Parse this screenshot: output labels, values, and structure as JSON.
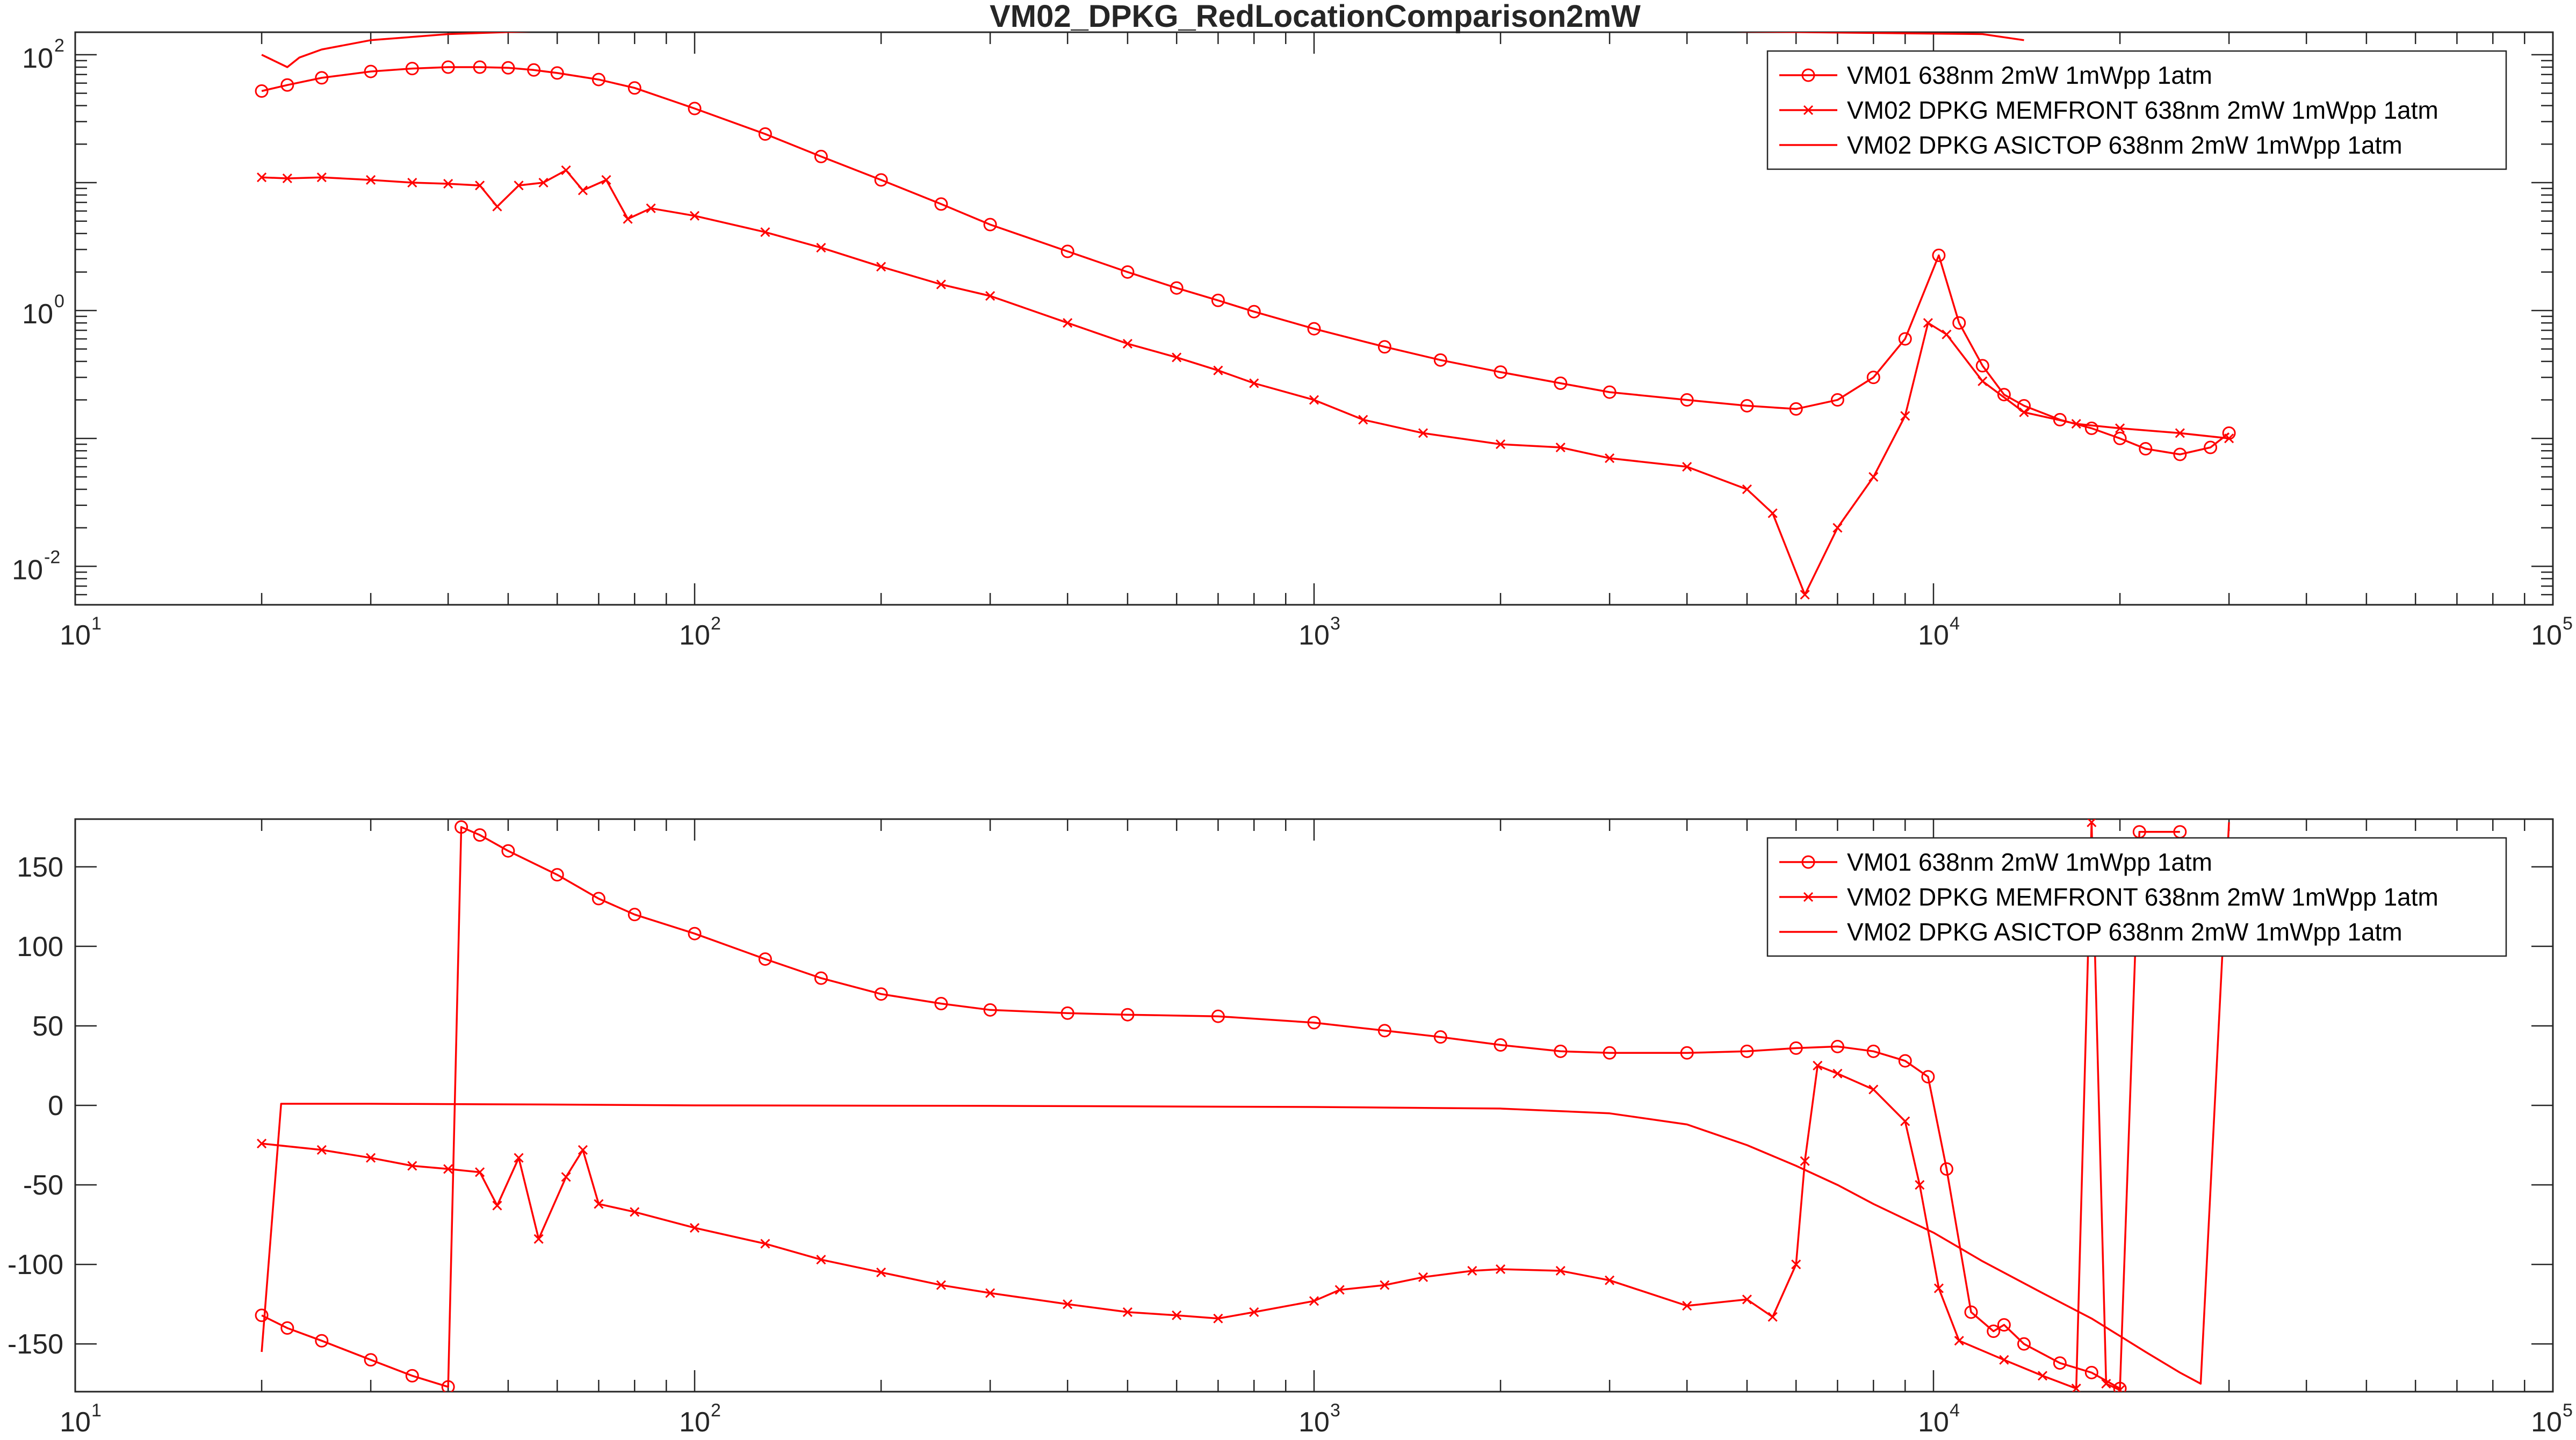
{
  "figure_title": "VM02_DPKG_RedLocationComparison2mW",
  "colors": {
    "series": "#ff0000",
    "axes": "#262626",
    "background": "#ffffff"
  },
  "chart_data": [
    {
      "type": "line",
      "title": "VM02_DPKG_RedLocationComparison2mW",
      "xlabel": "",
      "ylabel": "",
      "xscale": "log",
      "yscale": "log",
      "xlim": [
        10,
        100000
      ],
      "ylim": [
        0.005,
        150
      ],
      "grid": false,
      "legend": "top-right",
      "x_ticks": [
        {
          "base": "10",
          "exp": "1"
        },
        {
          "base": "10",
          "exp": "2"
        },
        {
          "base": "10",
          "exp": "3"
        },
        {
          "base": "10",
          "exp": "4"
        },
        {
          "base": "10",
          "exp": "5"
        }
      ],
      "y_ticks": [
        {
          "base": "10",
          "exp": "-2"
        },
        {
          "base": "10",
          "exp": "0"
        },
        {
          "base": "10",
          "exp": "2"
        }
      ],
      "series": [
        {
          "name": "VM01 638nm 2mW 1mWpp 1atm",
          "marker": "circle",
          "points": [
            [
              20,
              52
            ],
            [
              22,
              58
            ],
            [
              25,
              66
            ],
            [
              30,
              74
            ],
            [
              35,
              78
            ],
            [
              40,
              80
            ],
            [
              45,
              80
            ],
            [
              50,
              79
            ],
            [
              55,
              76
            ],
            [
              60,
              72
            ],
            [
              70,
              64
            ],
            [
              80,
              55
            ],
            [
              100,
              38
            ],
            [
              130,
              24
            ],
            [
              160,
              16
            ],
            [
              200,
              10.5
            ],
            [
              250,
              6.8
            ],
            [
              300,
              4.7
            ],
            [
              400,
              2.9
            ],
            [
              500,
              2.0
            ],
            [
              600,
              1.5
            ],
            [
              700,
              1.2
            ],
            [
              800,
              0.98
            ],
            [
              1000,
              0.72
            ],
            [
              1300,
              0.52
            ],
            [
              1600,
              0.41
            ],
            [
              2000,
              0.33
            ],
            [
              2500,
              0.27
            ],
            [
              3000,
              0.23
            ],
            [
              4000,
              0.2
            ],
            [
              5000,
              0.18
            ],
            [
              6000,
              0.17
            ],
            [
              7000,
              0.2
            ],
            [
              8000,
              0.3
            ],
            [
              9000,
              0.6
            ],
            [
              10200,
              2.7
            ],
            [
              11000,
              0.8
            ],
            [
              12000,
              0.37
            ],
            [
              13000,
              0.22
            ],
            [
              14000,
              0.18
            ],
            [
              16000,
              0.14
            ],
            [
              18000,
              0.12
            ],
            [
              20000,
              0.1
            ],
            [
              22000,
              0.083
            ],
            [
              25000,
              0.075
            ],
            [
              28000,
              0.085
            ],
            [
              30000,
              0.11
            ]
          ]
        },
        {
          "name": "VM02 DPKG MEMFRONT 638nm 2mW 1mWpp 1atm",
          "marker": "x",
          "points": [
            [
              20,
              11
            ],
            [
              22,
              10.8
            ],
            [
              25,
              11
            ],
            [
              30,
              10.5
            ],
            [
              35,
              10
            ],
            [
              40,
              9.8
            ],
            [
              45,
              9.5
            ],
            [
              48,
              6.5
            ],
            [
              52,
              9.5
            ],
            [
              57,
              10
            ],
            [
              62,
              12.5
            ],
            [
              66,
              8.7
            ],
            [
              72,
              10.5
            ],
            [
              78,
              5.2
            ],
            [
              85,
              6.3
            ],
            [
              100,
              5.5
            ],
            [
              130,
              4.1
            ],
            [
              160,
              3.1
            ],
            [
              200,
              2.2
            ],
            [
              250,
              1.6
            ],
            [
              300,
              1.3
            ],
            [
              400,
              0.8
            ],
            [
              500,
              0.55
            ],
            [
              600,
              0.43
            ],
            [
              700,
              0.34
            ],
            [
              800,
              0.27
            ],
            [
              1000,
              0.2
            ],
            [
              1200,
              0.14
            ],
            [
              1500,
              0.11
            ],
            [
              2000,
              0.09
            ],
            [
              2500,
              0.085
            ],
            [
              3000,
              0.07
            ],
            [
              4000,
              0.06
            ],
            [
              5000,
              0.04
            ],
            [
              5500,
              0.026
            ],
            [
              6200,
              0.006
            ],
            [
              7000,
              0.02
            ],
            [
              8000,
              0.05
            ],
            [
              9000,
              0.15
            ],
            [
              9800,
              0.8
            ],
            [
              10500,
              0.65
            ],
            [
              12000,
              0.28
            ],
            [
              14000,
              0.16
            ],
            [
              17000,
              0.13
            ],
            [
              20000,
              0.12
            ],
            [
              25000,
              0.11
            ],
            [
              30000,
              0.1
            ]
          ]
        },
        {
          "name": "VM02 DPKG ASICTOP 638nm 2mW 1mWpp 1atm",
          "marker": "none",
          "points": [
            [
              20,
              100
            ],
            [
              22,
              80
            ],
            [
              23,
              95
            ],
            [
              25,
              110
            ],
            [
              30,
              130
            ],
            [
              40,
              145
            ],
            [
              60,
              155
            ],
            [
              100,
              158
            ],
            [
              300,
              160
            ],
            [
              1000,
              160
            ],
            [
              3000,
              158
            ],
            [
              5000,
              152
            ],
            [
              8000,
              148
            ],
            [
              12000,
              145
            ],
            [
              14000,
              130
            ]
          ]
        }
      ]
    },
    {
      "type": "line",
      "title": "",
      "xlabel": "",
      "ylabel": "",
      "xscale": "log",
      "yscale": "linear",
      "xlim": [
        10,
        100000
      ],
      "ylim": [
        -180,
        180
      ],
      "grid": false,
      "legend": "top-right",
      "x_ticks": [
        {
          "base": "10",
          "exp": "1"
        },
        {
          "base": "10",
          "exp": "2"
        },
        {
          "base": "10",
          "exp": "3"
        },
        {
          "base": "10",
          "exp": "4"
        },
        {
          "base": "10",
          "exp": "5"
        }
      ],
      "y_ticks": [
        "150",
        "100",
        "50",
        "0",
        "-50",
        "-100",
        "-150"
      ],
      "series": [
        {
          "name": "VM01 638nm 2mW 1mWpp 1atm",
          "marker": "circle",
          "points": [
            [
              20,
              -132
            ],
            [
              22,
              -140
            ],
            [
              25,
              -148
            ],
            [
              30,
              -160
            ],
            [
              35,
              -170
            ],
            [
              40,
              -177
            ],
            [
              42,
              175
            ],
            [
              45,
              170
            ],
            [
              50,
              160
            ],
            [
              60,
              145
            ],
            [
              70,
              130
            ],
            [
              80,
              120
            ],
            [
              100,
              108
            ],
            [
              130,
              92
            ],
            [
              160,
              80
            ],
            [
              200,
              70
            ],
            [
              250,
              64
            ],
            [
              300,
              60
            ],
            [
              400,
              58
            ],
            [
              500,
              57
            ],
            [
              700,
              56
            ],
            [
              1000,
              52
            ],
            [
              1300,
              47
            ],
            [
              1600,
              43
            ],
            [
              2000,
              38
            ],
            [
              2500,
              34
            ],
            [
              3000,
              33
            ],
            [
              4000,
              33
            ],
            [
              5000,
              34
            ],
            [
              6000,
              36
            ],
            [
              7000,
              37
            ],
            [
              8000,
              34
            ],
            [
              9000,
              28
            ],
            [
              9800,
              18
            ],
            [
              10500,
              -40
            ],
            [
              11500,
              -130
            ],
            [
              12500,
              -142
            ],
            [
              13000,
              -138
            ],
            [
              14000,
              -150
            ],
            [
              16000,
              -162
            ],
            [
              18000,
              -168
            ],
            [
              20000,
              -178
            ],
            [
              21500,
              172
            ],
            [
              25000,
              172
            ]
          ]
        },
        {
          "name": "VM02 DPKG MEMFRONT 638nm 2mW 1mWpp 1atm",
          "marker": "x",
          "points": [
            [
              20,
              -24
            ],
            [
              25,
              -28
            ],
            [
              30,
              -33
            ],
            [
              35,
              -38
            ],
            [
              40,
              -40
            ],
            [
              45,
              -42
            ],
            [
              48,
              -63
            ],
            [
              52,
              -33
            ],
            [
              56,
              -84
            ],
            [
              62,
              -45
            ],
            [
              66,
              -28
            ],
            [
              70,
              -62
            ],
            [
              80,
              -67
            ],
            [
              100,
              -77
            ],
            [
              130,
              -87
            ],
            [
              160,
              -97
            ],
            [
              200,
              -105
            ],
            [
              250,
              -113
            ],
            [
              300,
              -118
            ],
            [
              400,
              -125
            ],
            [
              500,
              -130
            ],
            [
              600,
              -132
            ],
            [
              700,
              -134
            ],
            [
              800,
              -130
            ],
            [
              1000,
              -123
            ],
            [
              1100,
              -116
            ],
            [
              1300,
              -113
            ],
            [
              1500,
              -108
            ],
            [
              1800,
              -104
            ],
            [
              2000,
              -103
            ],
            [
              2500,
              -104
            ],
            [
              3000,
              -110
            ],
            [
              4000,
              -126
            ],
            [
              5000,
              -122
            ],
            [
              5500,
              -133
            ],
            [
              6000,
              -100
            ],
            [
              6200,
              -35
            ],
            [
              6500,
              25
            ],
            [
              7000,
              20
            ],
            [
              8000,
              10
            ],
            [
              9000,
              -10
            ],
            [
              9500,
              -50
            ],
            [
              10200,
              -115
            ],
            [
              11000,
              -148
            ],
            [
              13000,
              -160
            ],
            [
              15000,
              -170
            ],
            [
              17000,
              -178
            ],
            [
              18000,
              178
            ],
            [
              19000,
              -175
            ],
            [
              20000,
              -179
            ]
          ]
        },
        {
          "name": "VM02 DPKG ASICTOP 638nm 2mW 1mWpp 1atm",
          "marker": "none",
          "points": [
            [
              20,
              -155
            ],
            [
              21.5,
              1
            ],
            [
              30,
              1
            ],
            [
              60,
              0.5
            ],
            [
              100,
              0
            ],
            [
              300,
              -0.3
            ],
            [
              1000,
              -1
            ],
            [
              2000,
              -2
            ],
            [
              3000,
              -5
            ],
            [
              4000,
              -12
            ],
            [
              5000,
              -25
            ],
            [
              6000,
              -38
            ],
            [
              7000,
              -50
            ],
            [
              8000,
              -62
            ],
            [
              10000,
              -80
            ],
            [
              12000,
              -98
            ],
            [
              15000,
              -118
            ],
            [
              18000,
              -134
            ],
            [
              20000,
              -145
            ],
            [
              22000,
              -155
            ],
            [
              25000,
              -168
            ],
            [
              27000,
              -175
            ],
            [
              30000,
              178
            ]
          ]
        }
      ]
    }
  ]
}
